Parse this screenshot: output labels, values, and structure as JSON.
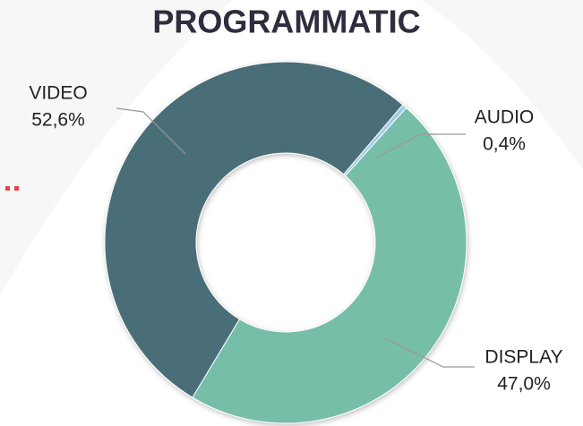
{
  "chart_data": {
    "type": "donut",
    "title": "PROGRAMMATIC",
    "categories": [
      "VIDEO",
      "AUDIO",
      "DISPLAY"
    ],
    "values": [
      52.6,
      0.4,
      47.0
    ],
    "value_labels": [
      "52,6%",
      "0,4%",
      "47,0%"
    ],
    "colors": [
      "#4a6e77",
      "#9fcbe6",
      "#77bea9"
    ]
  }
}
